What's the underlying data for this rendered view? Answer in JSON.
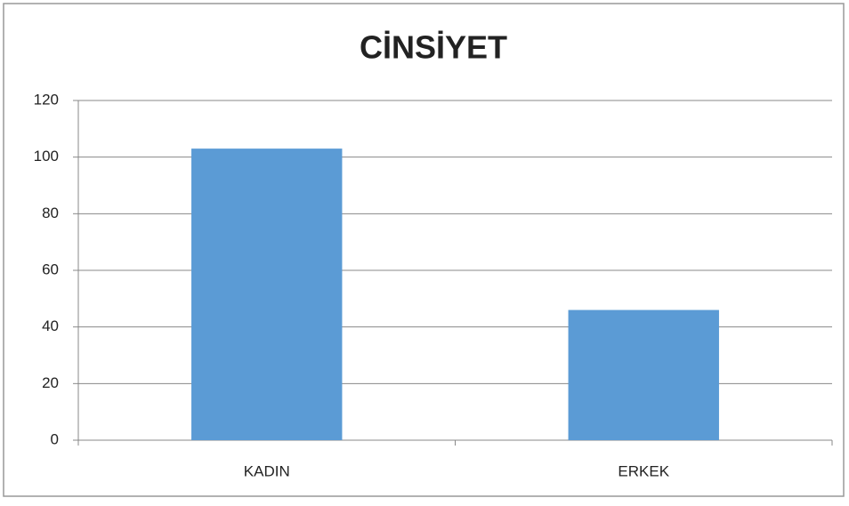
{
  "chart_data": {
    "type": "bar",
    "title": "CİNSİYET",
    "categories": [
      "KADIN",
      "ERKEK"
    ],
    "values": [
      103,
      46
    ],
    "color": "#5b9bd5",
    "ylim": [
      0,
      120
    ],
    "yticks": [
      0,
      20,
      40,
      60,
      80,
      100,
      120
    ],
    "grid": true
  }
}
